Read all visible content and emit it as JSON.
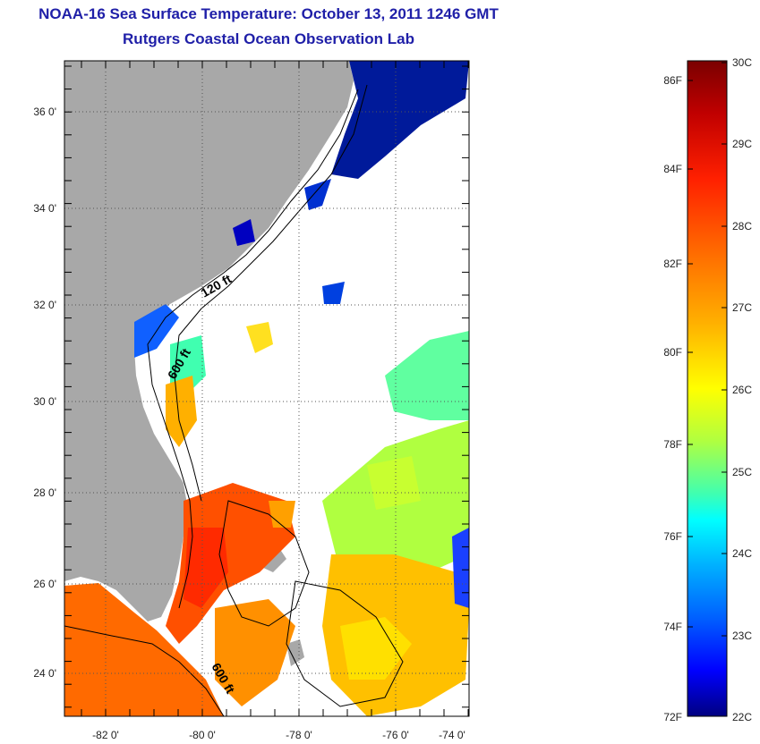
{
  "title": "NOAA-16 Sea Surface Temperature:  October 13, 2011 1246 GMT",
  "subtitle": "Rutgers Coastal Ocean Observation Lab",
  "lat_ticks": [
    "36 0'",
    "34 0'",
    "32 0'",
    "30 0'",
    "28 0'",
    "26 0'",
    "24 0'"
  ],
  "lon_ticks": [
    "-82 0'",
    "-80 0'",
    "-78 0'",
    "-76 0'",
    "-74 0'"
  ],
  "contour_labels": [
    "120 ft",
    "600 ft",
    "600 ft"
  ],
  "colorbar": {
    "fahrenheit_labels": [
      "86F",
      "84F",
      "82F",
      "80F",
      "78F",
      "76F",
      "74F",
      "72F"
    ],
    "celsius_labels": [
      "30C",
      "29C",
      "28C",
      "27C",
      "26C",
      "25C",
      "24C",
      "23C",
      "22C"
    ],
    "colors": [
      "#7a0000",
      "#c00000",
      "#ff2000",
      "#ff7000",
      "#ffb000",
      "#ffff00",
      "#b0ff40",
      "#40ffb0",
      "#00ffff",
      "#00b0ff",
      "#0060ff",
      "#0000ff",
      "#000080"
    ]
  },
  "colors": {
    "land": "#a8a8a8",
    "title": "#1f1fa8"
  }
}
